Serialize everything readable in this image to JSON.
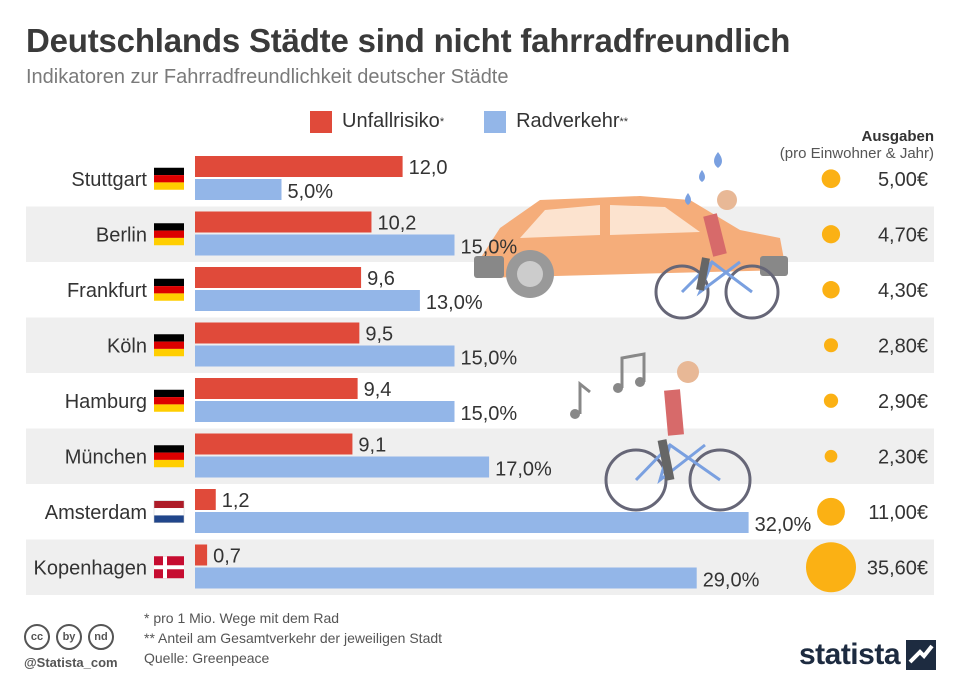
{
  "title": "Deutschlands Städte sind nicht fahrradfreundlich",
  "subtitle": "Indikatoren zur Fahrradfreundlichkeit deutscher Städte",
  "legend": {
    "unfall": "Unfallrisiko",
    "unfall_mark": "*",
    "rad": "Radverkehr",
    "rad_mark": "**"
  },
  "ausgaben_header": {
    "title": "Ausgaben",
    "sub": "(pro Einwohner & Jahr)"
  },
  "colors": {
    "unfall": "#e04a3a",
    "rad": "#93b6e8",
    "dot": "#fbb114",
    "stripe": "#efefef"
  },
  "chart_data": {
    "type": "bar",
    "categories": [
      "Stuttgart",
      "Berlin",
      "Frankfurt",
      "Köln",
      "Hamburg",
      "München",
      "Amsterdam",
      "Kopenhagen"
    ],
    "flags": [
      "de",
      "de",
      "de",
      "de",
      "de",
      "de",
      "nl",
      "dk"
    ],
    "series": [
      {
        "name": "Unfallrisiko",
        "values": [
          12.0,
          10.2,
          9.6,
          9.5,
          9.4,
          9.1,
          1.2,
          0.7
        ],
        "labels": [
          "12,0",
          "10,2",
          "9,6",
          "9,5",
          "9,4",
          "9,1",
          "1,2",
          "0,7"
        ]
      },
      {
        "name": "Radverkehr",
        "values": [
          5.0,
          15.0,
          13.0,
          15.0,
          15.0,
          17.0,
          32.0,
          29.0
        ],
        "labels": [
          "5,0%",
          "15,0%",
          "13,0%",
          "15,0%",
          "15,0%",
          "17,0%",
          "32,0%",
          "29,0%"
        ]
      }
    ],
    "ausgaben": {
      "values": [
        5.0,
        4.7,
        4.3,
        2.8,
        2.9,
        2.3,
        11.0,
        35.6
      ],
      "labels": [
        "5,00€",
        "4,70€",
        "4,30€",
        "2,80€",
        "2,90€",
        "2,30€",
        "11,00€",
        "35,60€"
      ]
    }
  },
  "footnotes": {
    "f1": "*   pro 1 Mio. Wege mit dem Rad",
    "f2": "** Anteil am Gesamtverkehr der jeweiligen Stadt",
    "source": "Quelle: Greenpeace"
  },
  "cc_icons": [
    "cc",
    "by",
    "nd"
  ],
  "handle": "@Statista_com",
  "logo": "statista"
}
